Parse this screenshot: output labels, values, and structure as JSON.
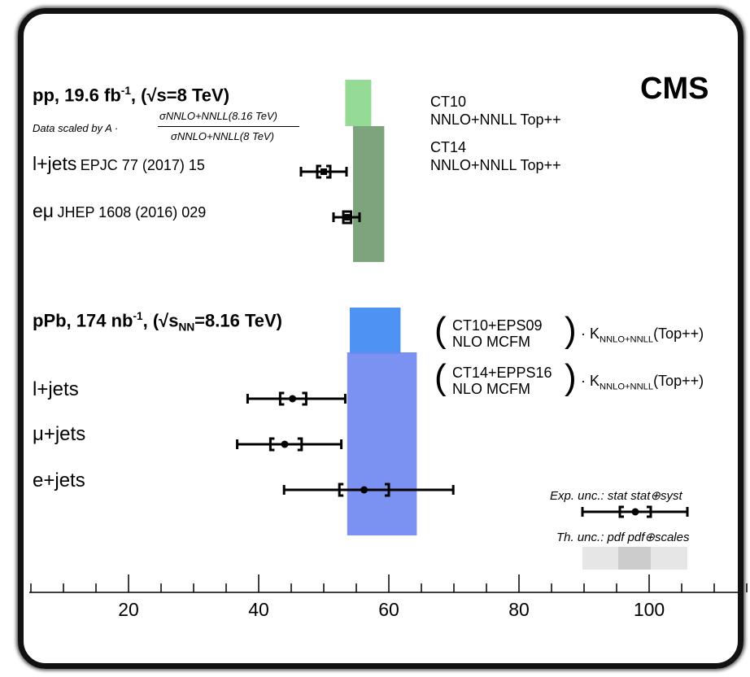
{
  "experiment": "CMS",
  "pp": {
    "title_main": "pp, 19.6 fb",
    "title_sup": "-1",
    "title_rest": ", (√s=8 TeV)",
    "scaling_label": "Data scaled by A ·",
    "scaling_num": "σNNLO+NNLL(8.16 TeV)",
    "scaling_den": "σNNLO+NNLL(8 TeV)",
    "rows": [
      {
        "channel": "l+jets",
        "reference": "EPJC 77 (2017) 15"
      },
      {
        "channel": "eμ",
        "reference": "JHEP 1608 (2016) 029"
      }
    ],
    "theory_labels": [
      [
        "CT10",
        "NNLO+NNLL Top++"
      ],
      [
        "CT14",
        "NNLO+NNLL Top++"
      ]
    ]
  },
  "ppb": {
    "title_main": "pPb, 174 nb",
    "title_sup": "-1",
    "title_rest_a": ", (√s",
    "title_sub": "NN",
    "title_rest_b": "=8.16 TeV)",
    "rows": [
      {
        "channel": "l+jets"
      },
      {
        "channel": "μ+jets"
      },
      {
        "channel": "e+jets"
      }
    ],
    "theory_labels": [
      [
        "CT10+EPS09",
        "NLO MCFM",
        "· K",
        "NNLO+NNLL",
        "(Top++)"
      ],
      [
        "CT14+EPPS16",
        "NLO MCFM",
        "· K",
        "NNLO+NNLL",
        "(Top++)"
      ]
    ]
  },
  "legend": {
    "exp_label": "Exp. unc.: stat  stat⊕syst",
    "th_label": "Th. unc.: pdf  pdf⊕scales"
  },
  "colors": {
    "ct10_pp": "#8ad68a",
    "ct14_pp": "#6f9a6f",
    "ct10_ppb": "#3b86f2",
    "ct14_ppb": "#6e86f2",
    "legend_light": "#e6e6e6",
    "legend_dark": "#cccccc"
  },
  "chart_data": {
    "type": "scatter",
    "xlim": [
      4,
      115
    ],
    "tick_labels": [
      "20",
      "40",
      "60",
      "80",
      "100"
    ],
    "tick_values": [
      20,
      40,
      60,
      80,
      100
    ],
    "measurements": [
      {
        "group": "pp",
        "channel": "l+jets",
        "x": 50.0,
        "stat": [
          49.0,
          51.0
        ],
        "syst": [
          46.5,
          53.5
        ]
      },
      {
        "group": "pp",
        "channel": "eμ",
        "x": 53.6,
        "stat": [
          53.0,
          54.2
        ],
        "syst": [
          51.5,
          55.5
        ]
      },
      {
        "group": "pPb",
        "channel": "l+jets",
        "x": 45.2,
        "stat": [
          43.3,
          47.3
        ],
        "syst": [
          38.3,
          53.3
        ]
      },
      {
        "group": "pPb",
        "channel": "μ+jets",
        "x": 44.0,
        "stat": [
          41.8,
          46.6
        ],
        "syst": [
          36.7,
          52.7
        ]
      },
      {
        "group": "pPb",
        "channel": "e+jets",
        "x": 56.2,
        "stat": [
          52.4,
          60.0
        ],
        "syst": [
          43.9,
          69.9
        ]
      }
    ],
    "theory": [
      {
        "name": "CT10 NNLO+NNLL Top++",
        "group": "pp",
        "pdf": [
          53.3,
          57.3
        ],
        "total": [
          53.3,
          57.3
        ]
      },
      {
        "name": "CT14 NNLO+NNLL Top++",
        "group": "pp",
        "pdf": [
          54.5,
          59.3
        ],
        "total": [
          54.5,
          59.3
        ]
      },
      {
        "name": "CT10+EPS09 NLO MCFM",
        "group": "pPb",
        "pdf": [
          54.0,
          61.8
        ],
        "total": [
          54.0,
          61.8
        ]
      },
      {
        "name": "CT14+EPPS16 NLO MCFM",
        "group": "pPb",
        "pdf": [
          53.6,
          64.3
        ],
        "total": [
          53.6,
          64.3
        ]
      }
    ]
  }
}
